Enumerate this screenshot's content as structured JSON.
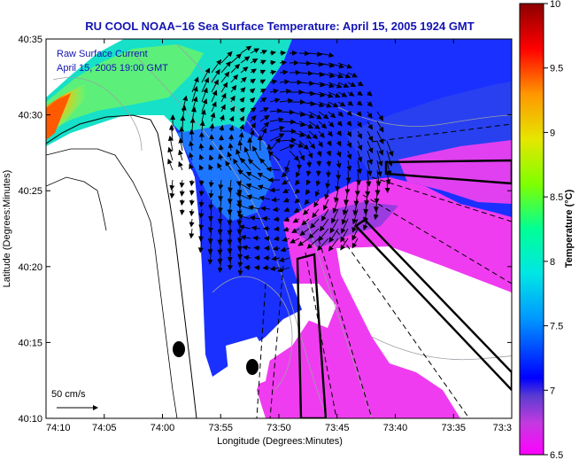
{
  "title": "RU COOL  NOAA−16  Sea Surface Temperature:  April 15, 2005 1924 GMT",
  "inset": {
    "line1": "Raw Surface Current",
    "line2": "April 15, 2005 19:00 GMT"
  },
  "axes": {
    "xlabel": "Longitude (Degrees:Minutes)",
    "ylabel": "Latitude (Degrees:Minutes)",
    "xticks": [
      "74:10",
      "74:05",
      "74:00",
      "73:55",
      "73:50",
      "73:45",
      "73:40",
      "73:35",
      "73:3"
    ],
    "yticks": [
      "40:35",
      "40:30",
      "40:25",
      "40:20",
      "40:15",
      "40:10"
    ]
  },
  "scale": {
    "label": "50 cm/s"
  },
  "colorbar": {
    "title": "Temperature (°C)",
    "ticks": [
      "10",
      "9.5",
      "9",
      "8.5",
      "8",
      "7.5",
      "7",
      "6.5"
    ],
    "min": 6.5,
    "max": 10,
    "stops": [
      "#ff00ff",
      "#6a3ec8",
      "#0000ff",
      "#0096ff",
      "#00e6e6",
      "#00ff96",
      "#7fff00",
      "#e6e600",
      "#ff9600",
      "#ff0000",
      "#8c0000"
    ]
  }
}
